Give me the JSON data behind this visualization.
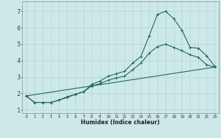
{
  "xlabel": "Humidex (Indice chaleur)",
  "bg_color": "#cce8e8",
  "grid_color": "#b8d8d0",
  "line_color": "#1a6060",
  "xlim": [
    -0.5,
    23.5
  ],
  "ylim": [
    0.8,
    7.6
  ],
  "xticks": [
    0,
    1,
    2,
    3,
    4,
    5,
    6,
    7,
    8,
    9,
    10,
    11,
    12,
    13,
    14,
    15,
    16,
    17,
    18,
    19,
    20,
    21,
    22,
    23
  ],
  "yticks": [
    1,
    2,
    3,
    4,
    5,
    6,
    7
  ],
  "line1_x": [
    0,
    1,
    2,
    3,
    4,
    5,
    6,
    7,
    8,
    9,
    10,
    11,
    12,
    13,
    14,
    15,
    16,
    17,
    18,
    19,
    20,
    21,
    22,
    23
  ],
  "line1_y": [
    1.85,
    1.45,
    1.45,
    1.45,
    1.6,
    1.75,
    1.95,
    2.1,
    2.55,
    2.75,
    3.05,
    3.2,
    3.35,
    3.85,
    4.25,
    5.5,
    6.8,
    7.0,
    6.55,
    5.85,
    4.8,
    4.75,
    4.3,
    3.65
  ],
  "line2_x": [
    0,
    1,
    2,
    3,
    4,
    5,
    6,
    7,
    8,
    9,
    10,
    11,
    12,
    13,
    14,
    15,
    16,
    17,
    18,
    19,
    20,
    21,
    22,
    23
  ],
  "line2_y": [
    1.85,
    1.45,
    1.45,
    1.45,
    1.6,
    1.8,
    1.95,
    2.1,
    2.45,
    2.6,
    2.8,
    2.95,
    3.05,
    3.45,
    3.85,
    4.45,
    4.85,
    5.0,
    4.8,
    4.6,
    4.35,
    4.2,
    3.75,
    3.6
  ],
  "line3_x": [
    0,
    23
  ],
  "line3_y": [
    1.85,
    3.6
  ]
}
